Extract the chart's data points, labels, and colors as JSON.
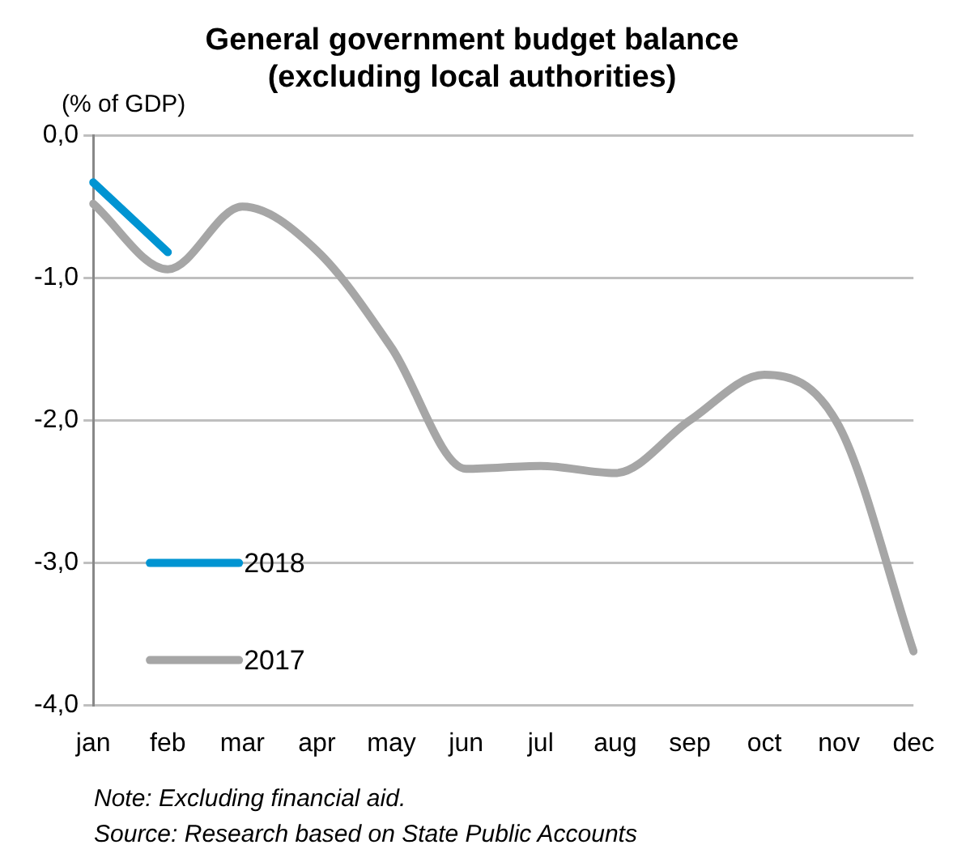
{
  "chart_data": {
    "type": "line",
    "title": "General government budget balance\n(excluding local authorities)",
    "ylabel": "(% of GDP)",
    "categories": [
      "jan",
      "feb",
      "mar",
      "apr",
      "may",
      "jun",
      "jul",
      "aug",
      "sep",
      "oct",
      "nov",
      "dec"
    ],
    "series": [
      {
        "name": "2018",
        "color": "#0094d2",
        "values": [
          -0.33,
          -0.82,
          null,
          null,
          null,
          null,
          null,
          null,
          null,
          null,
          null,
          null
        ]
      },
      {
        "name": "2017",
        "color": "#a6a6a6",
        "values": [
          -0.48,
          -0.94,
          -0.5,
          -0.81,
          -1.49,
          -2.34,
          -2.32,
          -2.37,
          -2.0,
          -1.68,
          -2.04,
          -3.62
        ]
      }
    ],
    "ylim": [
      -4,
      0
    ],
    "yticks": [
      {
        "value": 0,
        "label": "0,0"
      },
      {
        "value": -1,
        "label": "-1,0"
      },
      {
        "value": -2,
        "label": "-2,0"
      },
      {
        "value": -3,
        "label": "-3,0"
      },
      {
        "value": -4,
        "label": "-4,0"
      }
    ],
    "grid": "y",
    "legend": "bottom left",
    "marker": "none",
    "line_style": "solid",
    "annotations": [
      "Note: Excluding financial aid.",
      "Source: Research based on State Public Accounts"
    ]
  }
}
